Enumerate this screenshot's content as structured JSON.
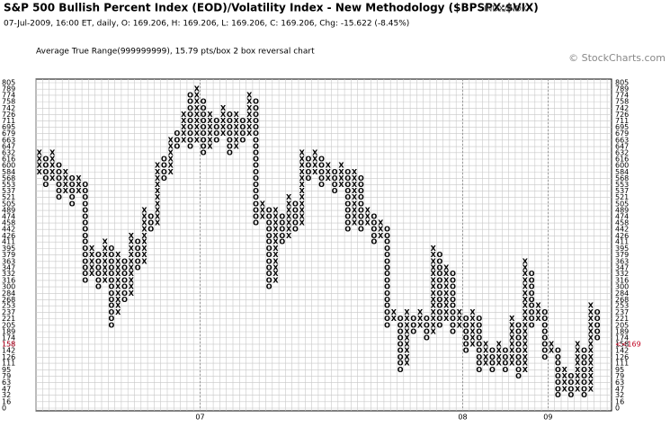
{
  "chart_data": {
    "type": "point-and-figure",
    "title": "S&P 500 Bullish Percent Index (EOD)/Volatility Index - New Methodology ($BPSPX:$VIX)",
    "exchange": "INDX/INDX",
    "subtitle": "07-Jul-2009, 16:00 ET, daily, O: 169.206, H: 169.206, L: 169.206, C: 169.206, Chg: -15.622 (-8.45%)",
    "method": "Average True Range(999999999), 15.79 pts/box 2 box reversal chart",
    "watermark": "© StockCharts.com",
    "ylim": [
      0,
      805
    ],
    "yticks": [
      805,
      789,
      774,
      758,
      742,
      726,
      711,
      695,
      679,
      663,
      647,
      632,
      616,
      600,
      584,
      568,
      553,
      537,
      521,
      505,
      489,
      474,
      458,
      442,
      426,
      411,
      395,
      379,
      363,
      347,
      332,
      316,
      300,
      284,
      268,
      253,
      237,
      221,
      205,
      189,
      174,
      158,
      142,
      126,
      111,
      95,
      79,
      63,
      47,
      32,
      16,
      0
    ],
    "last_price": {
      "value": 158,
      "left_label": "158",
      "right_label": "<<169"
    },
    "year_labels": [
      {
        "column": 25,
        "label": "07"
      },
      {
        "column": 65,
        "label": "08"
      },
      {
        "column": 78,
        "label": "09"
      }
    ],
    "columns": [
      {
        "type": "X",
        "low": 584,
        "high": 632
      },
      {
        "type": "O",
        "low": 553,
        "high": 616
      },
      {
        "type": "X",
        "low": 568,
        "high": 632
      },
      {
        "type": "O",
        "low": 521,
        "high": 600
      },
      {
        "type": "X",
        "low": 537,
        "high": 584
      },
      {
        "type": "O",
        "low": 505,
        "high": 568
      },
      {
        "type": "X",
        "low": 537,
        "high": 568
      },
      {
        "type": "O",
        "low": 316,
        "high": 553
      },
      {
        "type": "X",
        "low": 332,
        "high": 395
      },
      {
        "type": "O",
        "low": 300,
        "high": 379
      },
      {
        "type": "X",
        "low": 316,
        "high": 411
      },
      {
        "type": "O",
        "low": 205,
        "high": 395
      },
      {
        "type": "X",
        "low": 237,
        "high": 379
      },
      {
        "type": "O",
        "low": 268,
        "high": 363
      },
      {
        "type": "X",
        "low": 284,
        "high": 426
      },
      {
        "type": "O",
        "low": 347,
        "high": 411
      },
      {
        "type": "X",
        "low": 363,
        "high": 489
      },
      {
        "type": "O",
        "low": 442,
        "high": 474
      },
      {
        "type": "X",
        "low": 458,
        "high": 600
      },
      {
        "type": "O",
        "low": 568,
        "high": 616
      },
      {
        "type": "X",
        "low": 584,
        "high": 663
      },
      {
        "type": "O",
        "low": 647,
        "high": 679
      },
      {
        "type": "X",
        "low": 663,
        "high": 726
      },
      {
        "type": "O",
        "low": 647,
        "high": 774
      },
      {
        "type": "X",
        "low": 663,
        "high": 789
      },
      {
        "type": "O",
        "low": 632,
        "high": 758
      },
      {
        "type": "X",
        "low": 647,
        "high": 726
      },
      {
        "type": "O",
        "low": 663,
        "high": 711
      },
      {
        "type": "X",
        "low": 679,
        "high": 742
      },
      {
        "type": "O",
        "low": 632,
        "high": 726
      },
      {
        "type": "X",
        "low": 647,
        "high": 726
      },
      {
        "type": "O",
        "low": 663,
        "high": 711
      },
      {
        "type": "X",
        "low": 679,
        "high": 774
      },
      {
        "type": "O",
        "low": 458,
        "high": 758
      },
      {
        "type": "X",
        "low": 474,
        "high": 505
      },
      {
        "type": "O",
        "low": 300,
        "high": 489
      },
      {
        "type": "X",
        "low": 316,
        "high": 489
      },
      {
        "type": "O",
        "low": 411,
        "high": 474
      },
      {
        "type": "X",
        "low": 426,
        "high": 521
      },
      {
        "type": "O",
        "low": 442,
        "high": 505
      },
      {
        "type": "X",
        "low": 458,
        "high": 632
      },
      {
        "type": "O",
        "low": 568,
        "high": 616
      },
      {
        "type": "X",
        "low": 584,
        "high": 632
      },
      {
        "type": "O",
        "low": 553,
        "high": 616
      },
      {
        "type": "X",
        "low": 568,
        "high": 600
      },
      {
        "type": "O",
        "low": 537,
        "high": 584
      },
      {
        "type": "X",
        "low": 553,
        "high": 600
      },
      {
        "type": "O",
        "low": 442,
        "high": 584
      },
      {
        "type": "X",
        "low": 458,
        "high": 584
      },
      {
        "type": "O",
        "low": 442,
        "high": 568
      },
      {
        "type": "X",
        "low": 458,
        "high": 489
      },
      {
        "type": "O",
        "low": 411,
        "high": 474
      },
      {
        "type": "X",
        "low": 426,
        "high": 458
      },
      {
        "type": "O",
        "low": 205,
        "high": 442
      },
      {
        "type": "X",
        "low": 221,
        "high": 237
      },
      {
        "type": "O",
        "low": 95,
        "high": 221
      },
      {
        "type": "X",
        "low": 111,
        "high": 237
      },
      {
        "type": "O",
        "low": 189,
        "high": 221
      },
      {
        "type": "X",
        "low": 205,
        "high": 237
      },
      {
        "type": "O",
        "low": 174,
        "high": 221
      },
      {
        "type": "X",
        "low": 189,
        "high": 395
      },
      {
        "type": "O",
        "low": 205,
        "high": 379
      },
      {
        "type": "X",
        "low": 221,
        "high": 347
      },
      {
        "type": "O",
        "low": 189,
        "high": 332
      },
      {
        "type": "X",
        "low": 205,
        "high": 237
      },
      {
        "type": "O",
        "low": 142,
        "high": 221
      },
      {
        "type": "X",
        "low": 158,
        "high": 237
      },
      {
        "type": "O",
        "low": 95,
        "high": 221
      },
      {
        "type": "X",
        "low": 111,
        "high": 158
      },
      {
        "type": "O",
        "low": 95,
        "high": 142
      },
      {
        "type": "X",
        "low": 111,
        "high": 158
      },
      {
        "type": "O",
        "low": 95,
        "high": 142
      },
      {
        "type": "X",
        "low": 111,
        "high": 221
      },
      {
        "type": "O",
        "low": 79,
        "high": 205
      },
      {
        "type": "X",
        "low": 95,
        "high": 363
      },
      {
        "type": "O",
        "low": 205,
        "high": 332
      },
      {
        "type": "X",
        "low": 221,
        "high": 253
      },
      {
        "type": "O",
        "low": 126,
        "high": 237
      },
      {
        "type": "X",
        "low": 142,
        "high": 158
      },
      {
        "type": "O",
        "low": 32,
        "high": 142
      },
      {
        "type": "X",
        "low": 47,
        "high": 95
      },
      {
        "type": "O",
        "low": 32,
        "high": 79
      },
      {
        "type": "X",
        "low": 47,
        "high": 158
      },
      {
        "type": "O",
        "low": 32,
        "high": 142
      },
      {
        "type": "X",
        "low": 47,
        "high": 253
      },
      {
        "type": "O",
        "low": 174,
        "high": 237
      }
    ]
  }
}
